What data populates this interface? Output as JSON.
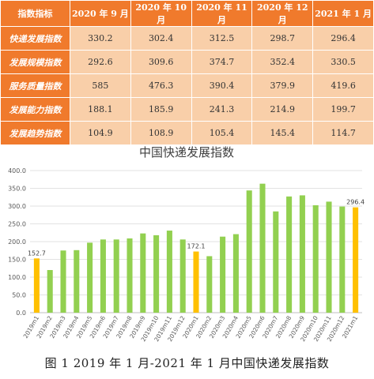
{
  "table": {
    "headers": [
      "指数指标",
      "2020 年 9 月",
      "2020 年 10 月",
      "2020 年 11 月",
      "2020 年 12 月",
      "2021 年 1 月"
    ],
    "rows": [
      {
        "label": "快递发展指数",
        "values": [
          "330.2",
          "302.4",
          "312.5",
          "298.7",
          "296.4"
        ]
      },
      {
        "label": "发展规模指数",
        "values": [
          "292.6",
          "309.6",
          "374.7",
          "352.4",
          "330.5"
        ]
      },
      {
        "label": "服务质量指数",
        "values": [
          "585",
          "476.3",
          "390.4",
          "379.9",
          "419.6"
        ]
      },
      {
        "label": "发展能力指数",
        "values": [
          "188.1",
          "185.9",
          "241.3",
          "214.9",
          "199.7"
        ]
      },
      {
        "label": "发展趋势指数",
        "values": [
          "104.9",
          "108.9",
          "105.4",
          "145.4",
          "114.7"
        ]
      }
    ]
  },
  "chart_data": {
    "type": "bar",
    "title": "中国快递发展指数",
    "xlabel": "",
    "ylabel": "",
    "ylim": [
      0,
      400
    ],
    "yticks": [
      "0.0",
      "50.0",
      "100.0",
      "150.0",
      "200.0",
      "250.0",
      "300.0",
      "350.0",
      "400.0"
    ],
    "grid": true,
    "categories": [
      "2019m1",
      "2019m2",
      "2019m3",
      "2019m4",
      "2019m5",
      "2019m6",
      "2019m7",
      "2019m8",
      "2019m9",
      "2019m10",
      "2019m11",
      "2019m12",
      "2020m1",
      "2020m2",
      "2020m3",
      "2020m4",
      "2020m5",
      "2020m6",
      "2020m7",
      "2020m8",
      "2020m9",
      "2020m10",
      "2020m11",
      "2020m12",
      "2021m1"
    ],
    "values": [
      152.7,
      120,
      175,
      176,
      197,
      206,
      206,
      209,
      223,
      218,
      231,
      206,
      172.1,
      159,
      214,
      221,
      344,
      363,
      285,
      327,
      330.2,
      302.4,
      312.5,
      298.7,
      296.4
    ],
    "highlighted": [
      "2019m1",
      "2020m1",
      "2021m1"
    ],
    "data_labels": {
      "2019m1": "152.7",
      "2020m1": "172.1",
      "2021m1": "296.4"
    },
    "colors": {
      "default": "#92d050",
      "highlight": "#ffc000",
      "grid": "#d9d9d9",
      "text": "#595959"
    }
  },
  "caption": "图 1  2019 年 1 月-2021 年 1 月中国快递发展指数"
}
